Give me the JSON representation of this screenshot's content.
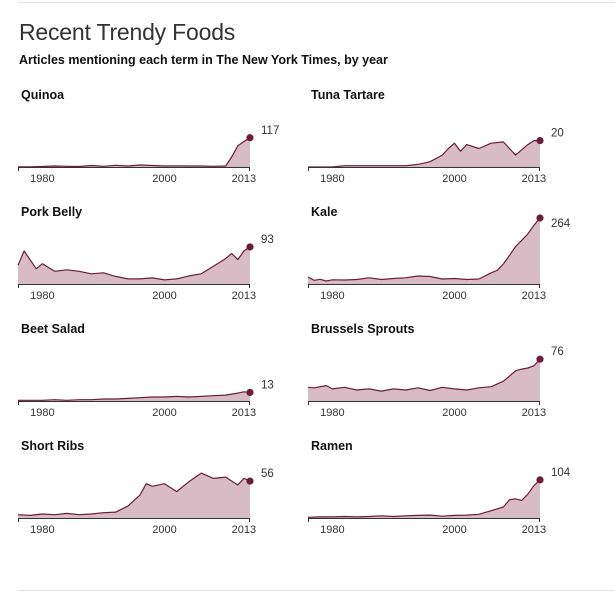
{
  "header": {
    "title": "Recent Trendy Foods",
    "subtitle": "Articles mentioning each term in The New York Times, by year"
  },
  "colors": {
    "line": "#6b1d3c",
    "area": "#d8bcc5",
    "axis": "#333333"
  },
  "chart_data": [
    {
      "type": "area",
      "title": "Quinoa",
      "x": [
        1976,
        1978,
        1980,
        1982,
        1984,
        1986,
        1988,
        1990,
        1992,
        1994,
        1996,
        1998,
        2000,
        2002,
        2004,
        2006,
        2008,
        2010,
        2011,
        2012,
        2013,
        2014
      ],
      "values": [
        1,
        1,
        2,
        4,
        3,
        2,
        6,
        3,
        7,
        4,
        8,
        6,
        4,
        5,
        4,
        4,
        3,
        4,
        40,
        85,
        102,
        117
      ],
      "end_value": "117",
      "xticks": [
        1980,
        2000,
        2013
      ],
      "xlim": [
        1976,
        2014
      ],
      "ylim": [
        0,
        264
      ]
    },
    {
      "type": "area",
      "title": "Tuna Tartare",
      "x": [
        1976,
        1978,
        1980,
        1982,
        1984,
        1986,
        1988,
        1990,
        1992,
        1994,
        1996,
        1998,
        1999,
        2000,
        2001,
        2002,
        2004,
        2006,
        2008,
        2010,
        2012,
        2013,
        2014
      ],
      "values": [
        0,
        0,
        0,
        1,
        1,
        1,
        1,
        1,
        1,
        2,
        4,
        9,
        14,
        18,
        12,
        17,
        14,
        18,
        19,
        9,
        17,
        20,
        20
      ],
      "end_value": "20",
      "xticks": [
        1980,
        2000,
        2013
      ],
      "xlim": [
        1976,
        2014
      ],
      "ylim": [
        0,
        50
      ]
    },
    {
      "type": "area",
      "title": "Pork Belly",
      "x": [
        1976,
        1977,
        1979,
        1980,
        1982,
        1984,
        1986,
        1988,
        1990,
        1992,
        1994,
        1996,
        1998,
        2000,
        2002,
        2004,
        2006,
        2008,
        2010,
        2011,
        2012,
        2013,
        2014
      ],
      "values": [
        57,
        85,
        50,
        60,
        45,
        48,
        45,
        40,
        42,
        35,
        30,
        30,
        32,
        28,
        30,
        36,
        40,
        55,
        70,
        80,
        68,
        85,
        93
      ],
      "end_value": "93",
      "xticks": [
        1980,
        2000,
        2013
      ],
      "xlim": [
        1976,
        2014
      ],
      "ylim": [
        20,
        150
      ]
    },
    {
      "type": "area",
      "title": "Kale",
      "x": [
        1976,
        1977,
        1978,
        1979,
        1980,
        1982,
        1984,
        1986,
        1988,
        1990,
        1992,
        1994,
        1996,
        1998,
        2000,
        2002,
        2004,
        2006,
        2007,
        2008,
        2009,
        2010,
        2011,
        2012,
        2013,
        2014
      ],
      "values": [
        28,
        15,
        19,
        12,
        17,
        16,
        18,
        25,
        18,
        22,
        25,
        32,
        30,
        20,
        22,
        18,
        20,
        45,
        55,
        80,
        115,
        150,
        175,
        200,
        235,
        264
      ],
      "end_value": "264",
      "xticks": [
        1980,
        2000,
        2013
      ],
      "xlim": [
        1976,
        2014
      ],
      "ylim": [
        0,
        264
      ]
    },
    {
      "type": "area",
      "title": "Beet Salad",
      "x": [
        1976,
        1978,
        1980,
        1982,
        1984,
        1986,
        1988,
        1990,
        1992,
        1994,
        1996,
        1998,
        2000,
        2002,
        2004,
        2006,
        2008,
        2010,
        2012,
        2013,
        2014
      ],
      "values": [
        1,
        1,
        1,
        2,
        1,
        2,
        2,
        3,
        3,
        4,
        5,
        6,
        6,
        7,
        6,
        7,
        8,
        9,
        12,
        14,
        13
      ],
      "end_value": "13",
      "xticks": [
        1980,
        2000,
        2013
      ],
      "xlim": [
        1976,
        2014
      ],
      "ylim": [
        0,
        100
      ]
    },
    {
      "type": "area",
      "title": "Brussels Sprouts",
      "x": [
        1976,
        1977,
        1979,
        1980,
        1982,
        1984,
        1986,
        1988,
        1990,
        1992,
        1994,
        1996,
        1998,
        2000,
        2002,
        2004,
        2006,
        2008,
        2010,
        2011,
        2012,
        2013,
        2014
      ],
      "values": [
        25,
        24,
        28,
        22,
        25,
        20,
        22,
        18,
        22,
        20,
        24,
        19,
        25,
        22,
        20,
        24,
        26,
        36,
        55,
        58,
        60,
        64,
        76
      ],
      "end_value": "76",
      "xticks": [
        1980,
        2000,
        2013
      ],
      "xlim": [
        1976,
        2014
      ],
      "ylim": [
        0,
        120
      ]
    },
    {
      "type": "area",
      "title": "Short Ribs",
      "x": [
        1976,
        1978,
        1980,
        1982,
        1984,
        1986,
        1988,
        1990,
        1992,
        1994,
        1996,
        1997,
        1998,
        2000,
        2002,
        2004,
        2006,
        2008,
        2010,
        2012,
        2013,
        2014
      ],
      "values": [
        5,
        4,
        6,
        5,
        7,
        5,
        6,
        8,
        9,
        18,
        35,
        52,
        48,
        52,
        40,
        55,
        68,
        60,
        62,
        50,
        60,
        56
      ],
      "end_value": "56",
      "xticks": [
        1980,
        2000,
        2013
      ],
      "xlim": [
        1976,
        2014
      ],
      "ylim": [
        0,
        100
      ]
    },
    {
      "type": "area",
      "title": "Ramen",
      "x": [
        1976,
        1978,
        1980,
        1982,
        1984,
        1986,
        1988,
        1990,
        1992,
        1994,
        1996,
        1998,
        2000,
        2002,
        2004,
        2006,
        2008,
        2009,
        2010,
        2011,
        2012,
        2013,
        2014
      ],
      "values": [
        2,
        3,
        3,
        4,
        3,
        4,
        6,
        4,
        6,
        7,
        8,
        5,
        7,
        8,
        10,
        20,
        30,
        50,
        52,
        48,
        65,
        88,
        104
      ],
      "end_value": "104",
      "xticks": [
        1980,
        2000,
        2013
      ],
      "xlim": [
        1976,
        2014
      ],
      "ylim": [
        0,
        180
      ]
    }
  ]
}
